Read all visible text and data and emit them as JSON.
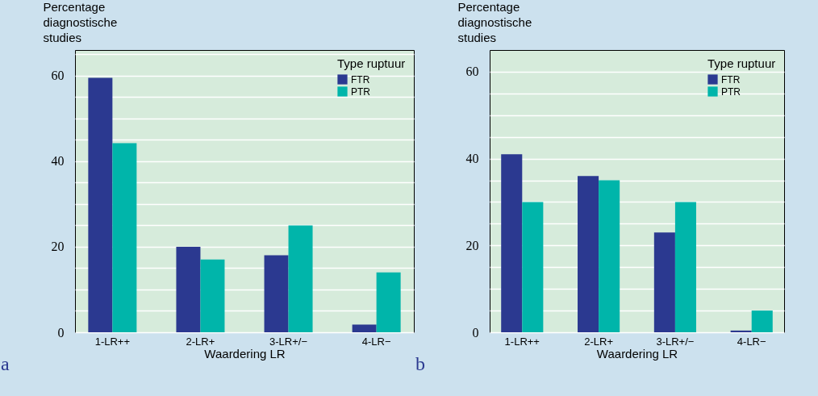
{
  "chart_data": [
    {
      "type": "bar",
      "title": "a",
      "xlabel": "Waardering LR",
      "ylabel": "Percentage diagnostische studies",
      "legend_title": "Type ruptuur",
      "legend": "top right",
      "grid": "y",
      "categories": [
        "1-LR++",
        "2-LR+",
        "3-LR+/−",
        "4-LR−"
      ],
      "series": [
        {
          "name": "FTR",
          "color": "#2b3990",
          "values": [
            59.5,
            20,
            18,
            1.8
          ]
        },
        {
          "name": "PTR",
          "color": "#00b5aa",
          "values": [
            44.2,
            17,
            25,
            14
          ]
        }
      ],
      "ylim": [
        0,
        66
      ],
      "yticks": [
        0,
        {
          "value": 5,
          "label": null
        },
        {
          "value": 10,
          "label": null
        },
        {
          "value": 15,
          "label": null
        },
        20,
        {
          "value": 25,
          "label": null
        },
        {
          "value": 30,
          "label": null
        },
        {
          "value": 35,
          "label": null
        },
        40,
        {
          "value": 45,
          "label": null
        },
        {
          "value": 50,
          "label": null
        },
        {
          "value": 55,
          "label": null
        },
        60,
        {
          "value": 65,
          "label": null
        }
      ]
    },
    {
      "type": "bar",
      "title": "b",
      "xlabel": "Waardering LR",
      "ylabel": "Percentage diagnostische studies",
      "legend_title": "Type ruptuur",
      "legend": "top right",
      "grid": "y",
      "categories": [
        "1-LR++",
        "2-LR+",
        "3-LR+/−",
        "4-LR−"
      ],
      "series": [
        {
          "name": "FTR",
          "color": "#2b3990",
          "values": [
            41,
            36,
            23,
            0.4
          ]
        },
        {
          "name": "PTR",
          "color": "#00b5aa",
          "values": [
            30,
            35,
            30,
            5
          ]
        }
      ],
      "ylim": [
        0,
        65
      ],
      "yticks": [
        0,
        {
          "value": 5,
          "label": null
        },
        {
          "value": 10,
          "label": null
        },
        {
          "value": 15,
          "label": null
        },
        20,
        {
          "value": 25,
          "label": null
        },
        {
          "value": 30,
          "label": null
        },
        {
          "value": 35,
          "label": null
        },
        40,
        {
          "value": 45,
          "label": null
        },
        {
          "value": 50,
          "label": null
        },
        {
          "value": 55,
          "label": null
        },
        60
      ]
    }
  ]
}
